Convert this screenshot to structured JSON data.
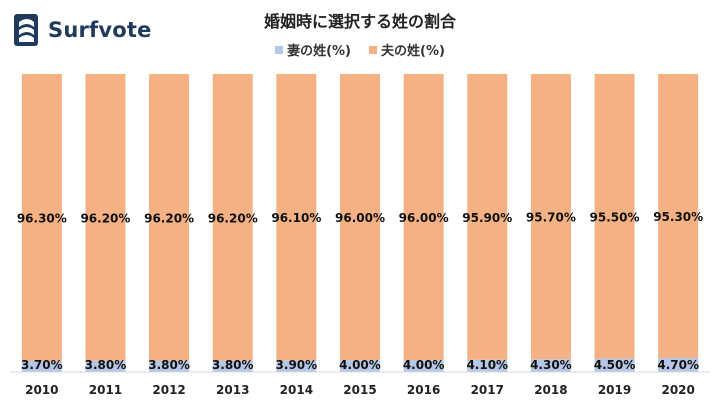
{
  "brand": {
    "name": "Surfvote"
  },
  "chart_data": {
    "type": "bar",
    "stacked": true,
    "percent": true,
    "title": "婚姻時に選択する姓の割合",
    "categories": [
      "2010",
      "2011",
      "2012",
      "2013",
      "2014",
      "2015",
      "2016",
      "2017",
      "2018",
      "2019",
      "2020"
    ],
    "series": [
      {
        "name": "妻の姓(%)",
        "color": "#b4c7e7",
        "values": [
          3.7,
          3.8,
          3.8,
          3.8,
          3.9,
          4.0,
          4.0,
          4.1,
          4.3,
          4.5,
          4.7
        ],
        "labels": [
          "3.70%",
          "3.80%",
          "3.80%",
          "3.80%",
          "3.90%",
          "4.00%",
          "4.00%",
          "4.10%",
          "4.30%",
          "4.50%",
          "4.70%"
        ]
      },
      {
        "name": "夫の姓(%)",
        "color": "#f4b183",
        "values": [
          96.3,
          96.2,
          96.2,
          96.2,
          96.1,
          96.0,
          96.0,
          95.9,
          95.7,
          95.5,
          95.3
        ],
        "labels": [
          "96.30%",
          "96.20%",
          "96.20%",
          "96.20%",
          "96.10%",
          "96.00%",
          "96.00%",
          "95.90%",
          "95.70%",
          "95.50%",
          "95.30%"
        ]
      }
    ],
    "ylim": [
      0,
      100
    ],
    "grid": false,
    "legend_position": "top"
  }
}
